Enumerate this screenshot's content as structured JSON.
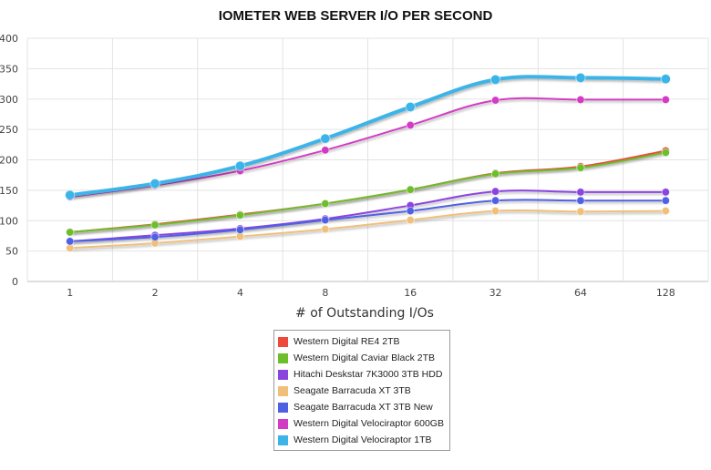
{
  "chart_data": {
    "type": "line",
    "title": "IOMETER WEB SERVER I/O PER SECOND",
    "xlabel": "# of Outstanding I/Os",
    "ylabel": "",
    "categories": [
      "1",
      "2",
      "4",
      "8",
      "16",
      "32",
      "64",
      "128"
    ],
    "ylim": [
      0,
      400
    ],
    "yticks": [
      0,
      50,
      100,
      150,
      200,
      250,
      300,
      350,
      400
    ],
    "grid": true,
    "legend_position": "bottom-center",
    "series": [
      {
        "name": "Western Digital RE4 2TB",
        "color": "#ee4a3c",
        "values": [
          81,
          94,
          110,
          128,
          151,
          178,
          189,
          215
        ]
      },
      {
        "name": "Western Digital Caviar Black 2TB",
        "color": "#6cbf2a",
        "values": [
          81,
          93,
          109,
          128,
          151,
          177,
          187,
          212
        ]
      },
      {
        "name": "Hitachi Deskstar 7K3000 3TB HDD",
        "color": "#8b44e0",
        "values": [
          66,
          76,
          87,
          103,
          125,
          148,
          147,
          147
        ]
      },
      {
        "name": "Seagate Barracuda XT 3TB",
        "color": "#f0c07a",
        "values": [
          55,
          63,
          74,
          86,
          101,
          116,
          115,
          116
        ]
      },
      {
        "name": "Seagate Barracuda XT 3TB New",
        "color": "#5060e4",
        "values": [
          66,
          73,
          85,
          101,
          116,
          133,
          133,
          133
        ]
      },
      {
        "name": "Western Digital Velociraptor 600GB",
        "color": "#d23cc4",
        "values": [
          139,
          158,
          182,
          216,
          257,
          298,
          299,
          299
        ]
      },
      {
        "name": "Western Digital Velociraptor 1TB",
        "color": "#3cb4e8",
        "values": [
          142,
          161,
          190,
          235,
          287,
          332,
          335,
          333
        ]
      }
    ]
  }
}
